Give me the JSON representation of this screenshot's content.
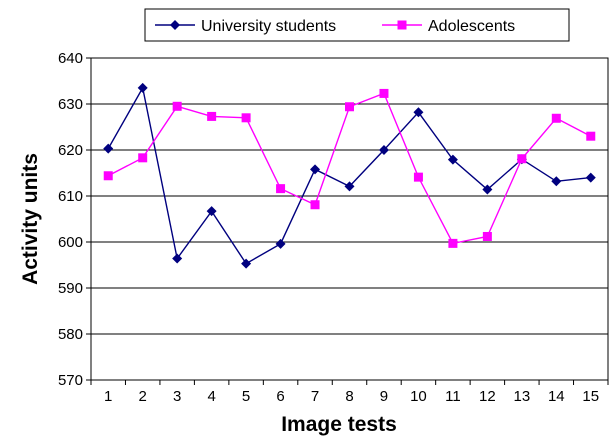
{
  "chart_data": {
    "type": "line",
    "title": "",
    "xlabel": "Image tests",
    "ylabel": "Activity units",
    "categories": [
      "1",
      "2",
      "3",
      "4",
      "5",
      "6",
      "7",
      "8",
      "9",
      "10",
      "11",
      "12",
      "13",
      "14",
      "15"
    ],
    "ylim": [
      570,
      640
    ],
    "yticks": [
      570,
      580,
      590,
      600,
      610,
      620,
      630,
      640
    ],
    "grid": true,
    "legend_position": "top",
    "series": [
      {
        "name": "University students",
        "color": "#00007f",
        "marker": "diamond",
        "values": [
          620.3,
          633.5,
          596.4,
          606.7,
          595.3,
          599.6,
          615.8,
          612.1,
          620.0,
          628.2,
          617.9,
          611.4,
          618.0,
          613.2,
          614.0
        ]
      },
      {
        "name": "Adolescents",
        "color": "#ff00ff",
        "marker": "square",
        "values": [
          614.4,
          618.3,
          629.5,
          627.3,
          627.0,
          611.6,
          608.1,
          629.4,
          632.3,
          614.1,
          599.7,
          601.2,
          618.1,
          626.9,
          623.0
        ]
      }
    ]
  }
}
